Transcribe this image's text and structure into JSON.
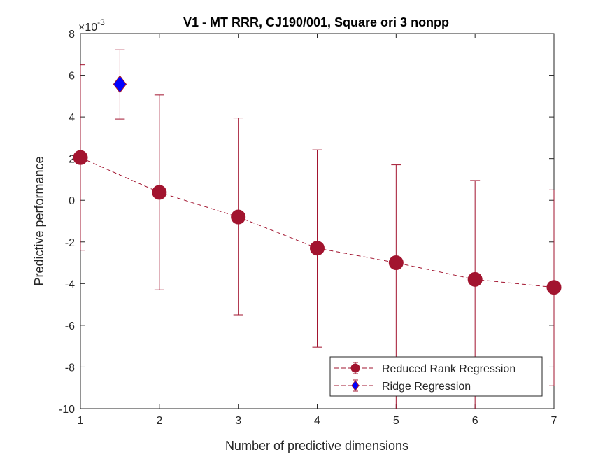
{
  "chart_data": {
    "type": "line",
    "title": "V1 - MT RRR, CJ190/001, Square ori 3 nonpp",
    "xlabel": "Number of predictive dimensions",
    "ylabel": "Predictive performance",
    "y_exponent_label": "×10",
    "y_exponent_power": "-3",
    "xlim": [
      1,
      7
    ],
    "ylim": [
      -10,
      8
    ],
    "xticks": [
      1,
      2,
      3,
      4,
      5,
      6,
      7
    ],
    "yticks": [
      -10,
      -8,
      -6,
      -4,
      -2,
      0,
      2,
      4,
      6,
      8
    ],
    "grid": false,
    "legend_position": "bottom-right",
    "series": [
      {
        "name": "Reduced Rank Regression",
        "marker": "circle",
        "line_style": "dashed",
        "color": "#A2142F",
        "x": [
          1,
          2,
          3,
          4,
          5,
          6,
          7
        ],
        "y": [
          2.05,
          0.38,
          -0.8,
          -2.3,
          -3.0,
          -3.8,
          -4.18
        ],
        "err_low": [
          -2.4,
          -4.3,
          -5.5,
          -7.05,
          -10.2,
          -10.2,
          -8.9
        ],
        "err_high": [
          6.5,
          5.05,
          3.95,
          2.42,
          1.7,
          0.95,
          0.5
        ]
      },
      {
        "name": "Ridge Regression",
        "marker": "diamond",
        "line_style": "dashed",
        "color": "#0000FF",
        "edge_color": "#A2142F",
        "x": [
          1.5
        ],
        "y": [
          5.57
        ],
        "err_low": [
          3.9
        ],
        "err_high": [
          7.22
        ]
      }
    ]
  }
}
